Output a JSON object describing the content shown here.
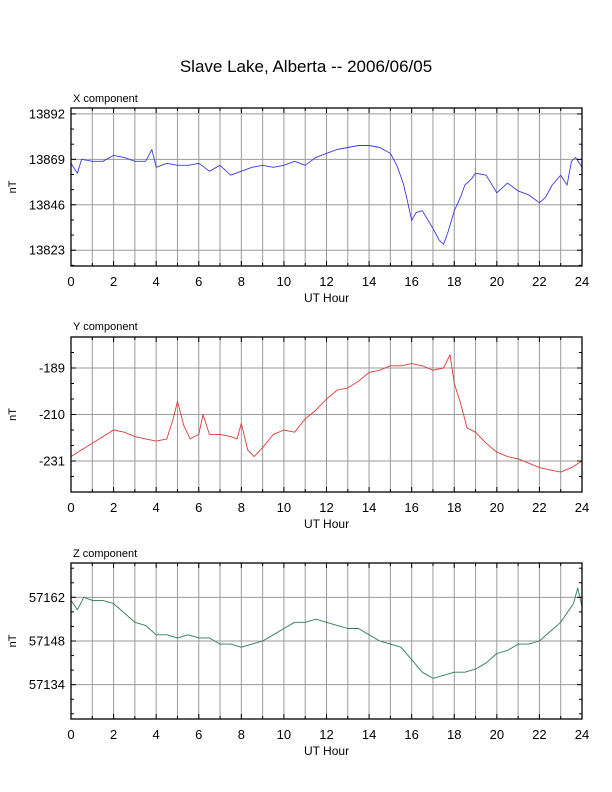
{
  "title": "Slave Lake, Alberta -- 2006/06/05",
  "colors": {
    "x": "#3a3ae6",
    "y": "#e03a3a",
    "z": "#2e7d4f",
    "grid": "#9a9a9a",
    "frame": "#000000"
  },
  "chart_data": [
    {
      "type": "line",
      "panel_label": "X component",
      "xlabel": "UT Hour",
      "ylabel": "nT",
      "xlim": [
        0,
        24
      ],
      "ylim": [
        13815,
        13895
      ],
      "xticks": [
        0,
        2,
        4,
        6,
        8,
        10,
        12,
        14,
        16,
        18,
        20,
        22,
        24
      ],
      "yticks": [
        13823,
        13846,
        13869,
        13892
      ],
      "grid": true,
      "color": "#3a3ae6",
      "series": [
        {
          "x": [
            0,
            0.3,
            0.5,
            1,
            1.5,
            2,
            2.5,
            3,
            3.5,
            3.8,
            4,
            4.5,
            5,
            5.5,
            6,
            6.5,
            7,
            7.5,
            8,
            8.5,
            9,
            9.5,
            10,
            10.5,
            11,
            11.5,
            12,
            12.5,
            13,
            13.5,
            14,
            14.5,
            15,
            15.3,
            15.6,
            15.8,
            16,
            16.2,
            16.5,
            17,
            17.3,
            17.5,
            17.7,
            18,
            18.3,
            18.5,
            18.8,
            19,
            19.5,
            20,
            20.5,
            21,
            21.5,
            22,
            22.3,
            22.6,
            23,
            23.3,
            23.5,
            23.7,
            24
          ],
          "y": [
            13867,
            13862,
            13869,
            13868,
            13868,
            13871,
            13870,
            13868,
            13868,
            13874,
            13865,
            13867,
            13866,
            13866,
            13867,
            13863,
            13866,
            13861,
            13863,
            13865,
            13866,
            13865,
            13866,
            13868,
            13866,
            13870,
            13872,
            13874,
            13875,
            13876,
            13876,
            13875,
            13872,
            13866,
            13857,
            13848,
            13838,
            13842,
            13843,
            13834,
            13828,
            13826,
            13832,
            13843,
            13850,
            13856,
            13859,
            13862,
            13861,
            13852,
            13857,
            13853,
            13851,
            13847,
            13850,
            13856,
            13861,
            13856,
            13868,
            13870,
            13865
          ]
        }
      ]
    },
    {
      "type": "line",
      "panel_label": "Y component",
      "xlabel": "UT Hour",
      "ylabel": "nT",
      "xlim": [
        0,
        24
      ],
      "ylim": [
        -245,
        -175
      ],
      "xticks": [
        0,
        2,
        4,
        6,
        8,
        10,
        12,
        14,
        16,
        18,
        20,
        22,
        24
      ],
      "yticks": [
        -189,
        -210,
        -231
      ],
      "grid": true,
      "color": "#e03a3a",
      "series": [
        {
          "x": [
            0,
            0.5,
            1,
            1.5,
            2,
            2.5,
            3,
            3.5,
            4,
            4.5,
            4.8,
            5,
            5.3,
            5.6,
            6,
            6.2,
            6.5,
            7,
            7.5,
            7.8,
            8,
            8.3,
            8.6,
            9,
            9.5,
            10,
            10.5,
            11,
            11.5,
            12,
            12.5,
            13,
            13.5,
            14,
            14.5,
            15,
            15.5,
            16,
            16.5,
            17,
            17.5,
            17.8,
            18,
            18.3,
            18.6,
            19,
            19.5,
            20,
            20.5,
            21,
            21.5,
            22,
            22.5,
            23,
            23.5,
            24
          ],
          "y": [
            -229,
            -226,
            -223,
            -220,
            -217,
            -218,
            -220,
            -221,
            -222,
            -221,
            -212,
            -204,
            -215,
            -221,
            -219,
            -210,
            -219,
            -219,
            -220,
            -221,
            -214,
            -226,
            -229,
            -225,
            -219,
            -217,
            -218,
            -212,
            -208,
            -203,
            -199,
            -198,
            -195,
            -191,
            -190,
            -188,
            -188,
            -187,
            -188,
            -190,
            -189,
            -183,
            -196,
            -205,
            -216,
            -218,
            -223,
            -227,
            -229,
            -230,
            -232,
            -234,
            -235,
            -236,
            -234,
            -231
          ]
        }
      ]
    },
    {
      "type": "line",
      "panel_label": "Z component",
      "xlabel": "UT Hour",
      "ylabel": "nT",
      "xlim": [
        0,
        24
      ],
      "ylim": [
        57123,
        57173
      ],
      "xticks": [
        0,
        2,
        4,
        6,
        8,
        10,
        12,
        14,
        16,
        18,
        20,
        22,
        24
      ],
      "yticks": [
        57134,
        57148,
        57162
      ],
      "grid": true,
      "color": "#2e7d4f",
      "series": [
        {
          "x": [
            0,
            0.3,
            0.6,
            1,
            1.5,
            2,
            2.5,
            3,
            3.5,
            4,
            4.5,
            5,
            5.5,
            6,
            6.5,
            7,
            7.5,
            8,
            8.5,
            9,
            9.5,
            10,
            10.5,
            11,
            11.5,
            12,
            12.5,
            13,
            13.5,
            14,
            14.5,
            15,
            15.5,
            16,
            16.5,
            17,
            17.5,
            18,
            18.5,
            19,
            19.5,
            20,
            20.5,
            21,
            21.5,
            22,
            22.5,
            23,
            23.3,
            23.6,
            23.8,
            24
          ],
          "y": [
            57161,
            57158,
            57162,
            57161,
            57161,
            57160,
            57157,
            57154,
            57153,
            57150,
            57150,
            57149,
            57150,
            57149,
            57149,
            57147,
            57147,
            57146,
            57147,
            57148,
            57150,
            57152,
            57154,
            57154,
            57155,
            57154,
            57153,
            57152,
            57152,
            57150,
            57148,
            57147,
            57146,
            57142,
            57138,
            57136,
            57137,
            57138,
            57138,
            57139,
            57141,
            57144,
            57145,
            57147,
            57147,
            57148,
            57151,
            57154,
            57157,
            57160,
            57165,
            57159
          ]
        }
      ]
    }
  ]
}
